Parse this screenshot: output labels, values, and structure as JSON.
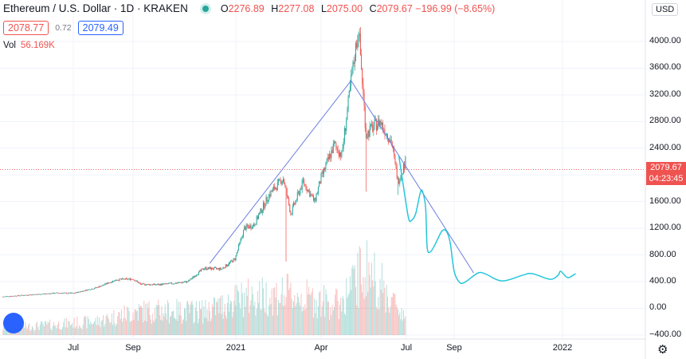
{
  "header": {
    "symbol_title": "Ethereum / U.S. Dollar · 1D · KRAKEN",
    "status_color": "#26a69a",
    "ohlc": {
      "o_label": "O",
      "o": "2276.89",
      "h_label": "H",
      "h": "2277.08",
      "l_label": "L",
      "l": "2075.00",
      "c_label": "C",
      "c": "2079.67",
      "change": "−196.99 (−8.65%)"
    },
    "bid": "2078.77",
    "spread": "0.72",
    "ask": "2079.49",
    "volume_label": "Vol",
    "volume_value": "56.169K"
  },
  "price_axis": {
    "currency": "USD",
    "current_price": "2079.67",
    "countdown": "04:23:45",
    "ticks": [
      "4000.00",
      "3600.00",
      "3200.00",
      "2800.00",
      "2400.00",
      "1600.00",
      "1200.00",
      "800.00",
      "400.00",
      "0.00",
      "−400.00"
    ]
  },
  "time_axis": {
    "ticks": [
      "Jul",
      "Sep",
      "2021",
      "Apr",
      "Jul",
      "Sep",
      "2022"
    ]
  },
  "colors": {
    "up": "#26a69a",
    "down": "#ef5350",
    "trendline": "#6c7ee1",
    "projection": "#26c6da",
    "grid": "#f0f3fa",
    "current_price_line": "#ef5350"
  },
  "chart_data": {
    "type": "candlestick",
    "symbol": "ETHUSD",
    "interval": "1D",
    "ylim": [
      -400,
      4400
    ],
    "grid": true,
    "price_path": [
      [
        "2020-04-20",
        175
      ],
      [
        "2020-05-15",
        200
      ],
      [
        "2020-06-15",
        230
      ],
      [
        "2020-07-01",
        225
      ],
      [
        "2020-07-25",
        310
      ],
      [
        "2020-08-15",
        430
      ],
      [
        "2020-09-01",
        440
      ],
      [
        "2020-09-10",
        360
      ],
      [
        "2020-10-01",
        355
      ],
      [
        "2020-10-20",
        375
      ],
      [
        "2020-11-05",
        400
      ],
      [
        "2020-11-24",
        600
      ],
      [
        "2020-12-15",
        590
      ],
      [
        "2020-12-31",
        740
      ],
      [
        "2021-01-10",
        1200
      ],
      [
        "2021-01-20",
        1250
      ],
      [
        "2021-02-05",
        1700
      ],
      [
        "2021-02-20",
        1950
      ],
      [
        "2021-02-28",
        1420
      ],
      [
        "2021-03-13",
        1900
      ],
      [
        "2021-03-25",
        1600
      ],
      [
        "2021-04-01",
        1950
      ],
      [
        "2021-04-15",
        2450
      ],
      [
        "2021-04-23",
        2300
      ],
      [
        "2021-05-03",
        3400
      ],
      [
        "2021-05-11",
        4200
      ],
      [
        "2021-05-19",
        2600
      ],
      [
        "2021-05-25",
        2700
      ],
      [
        "2021-06-03",
        2800
      ],
      [
        "2021-06-15",
        2500
      ],
      [
        "2021-06-22",
        1900
      ],
      [
        "2021-06-30",
        2200
      ]
    ],
    "notable_lows": [
      [
        "2021-02-23",
        700
      ],
      [
        "2021-05-19",
        1750
      ],
      [
        "2021-06-22",
        1700
      ]
    ],
    "volume_level": [
      [
        "2020-04-20",
        0.1
      ],
      [
        "2020-07-25",
        0.2
      ],
      [
        "2020-09-05",
        0.35
      ],
      [
        "2020-11-26",
        0.35
      ],
      [
        "2021-01-11",
        0.55
      ],
      [
        "2021-02-23",
        0.6
      ],
      [
        "2021-04-20",
        0.45
      ],
      [
        "2021-05-19",
        1.0
      ],
      [
        "2021-06-22",
        0.4
      ],
      [
        "2021-06-30",
        0.3
      ]
    ],
    "trendlines": [
      {
        "from": [
          "2020-12-01",
          675
        ],
        "to": [
          "2021-05-03",
          3414
        ]
      },
      {
        "from": [
          "2021-05-03",
          3414
        ],
        "to": [
          "2021-09-23",
          530
        ]
      }
    ],
    "projection": [
      [
        "2021-06-23",
        2290
      ],
      [
        "2021-06-30",
        1632
      ],
      [
        "2021-07-04",
        1345
      ],
      [
        "2021-07-07",
        1310
      ],
      [
        "2021-07-13",
        1415
      ],
      [
        "2021-07-19",
        1730
      ],
      [
        "2021-07-22",
        1750
      ],
      [
        "2021-07-26",
        1510
      ],
      [
        "2021-07-28",
        915
      ],
      [
        "2021-08-01",
        845
      ],
      [
        "2021-08-07",
        950
      ],
      [
        "2021-08-16",
        1155
      ],
      [
        "2021-08-22",
        1155
      ],
      [
        "2021-08-27",
        975
      ],
      [
        "2021-09-01",
        555
      ],
      [
        "2021-09-07",
        390
      ],
      [
        "2021-09-13",
        390
      ],
      [
        "2021-09-28",
        530
      ],
      [
        "2021-10-07",
        510
      ],
      [
        "2021-10-25",
        410
      ],
      [
        "2021-11-17",
        495
      ],
      [
        "2021-11-28",
        520
      ],
      [
        "2021-12-18",
        435
      ],
      [
        "2021-12-27",
        495
      ],
      [
        "2021-12-30",
        555
      ],
      [
        "2022-01-07",
        460
      ],
      [
        "2022-01-16",
        520
      ]
    ]
  }
}
